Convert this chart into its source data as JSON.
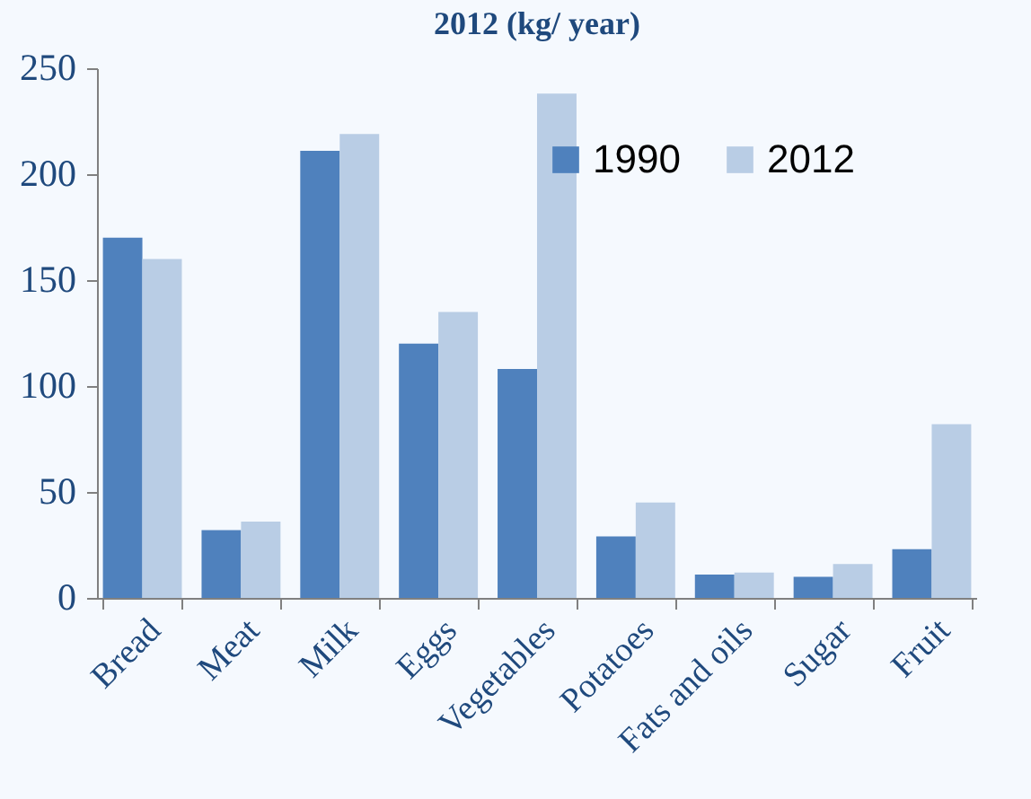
{
  "chart_data": {
    "type": "bar",
    "title": "2012 (kg/ year)",
    "categories": [
      "Bread",
      "Meat",
      "Milk",
      "Eggs",
      "Vegetables",
      "Potatoes",
      "Fats and oils",
      "Sugar",
      "Fruit"
    ],
    "series": [
      {
        "name": "1990",
        "color": "#4f81bd",
        "values": [
          170,
          32,
          211,
          120,
          108,
          29,
          11,
          10,
          23
        ]
      },
      {
        "name": "2012",
        "color": "#b9cde5",
        "values": [
          160,
          36,
          219,
          135,
          238,
          45,
          12,
          16,
          82
        ]
      }
    ],
    "ylim": [
      0,
      250
    ],
    "yticks": [
      0,
      50,
      100,
      150,
      200,
      250
    ],
    "grid": false,
    "legend": "top right"
  }
}
